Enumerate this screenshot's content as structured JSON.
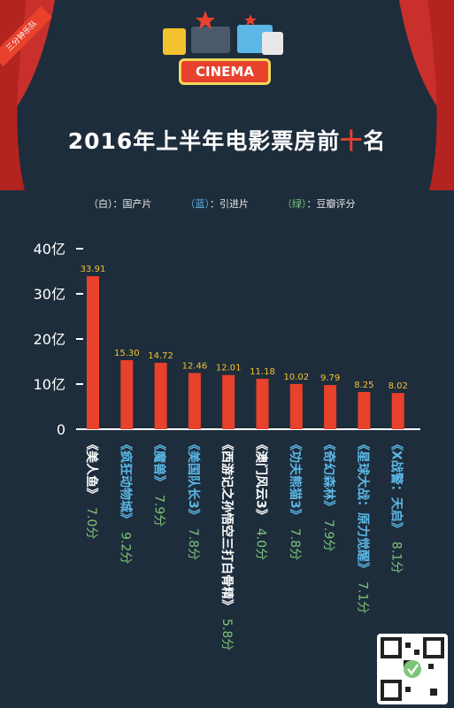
{
  "header": {
    "corner_tag": "三分钟乐队",
    "cinema_sign": "CINEMA",
    "title_before": "2016年上半年电影票房前",
    "title_highlight": "十",
    "title_after": "名"
  },
  "legend": {
    "items": [
      {
        "open": "（白）",
        "label": "：国产片",
        "color": "#ffffff"
      },
      {
        "open": "（蓝）",
        "label": "：引进片",
        "color": "#5bb8e6"
      },
      {
        "open": "（绿）",
        "label": "：豆瓣评分",
        "color": "#7cc576"
      }
    ]
  },
  "colors": {
    "bar": "#e8412c",
    "value_label": "#f3c22f",
    "domestic": "#ffffff",
    "imported": "#5bb8e6",
    "rating": "#7cc576",
    "axis": "#ffffff",
    "background": "#1e2d3c"
  },
  "chart_data": {
    "type": "bar",
    "title": "2016年上半年电影票房前十名",
    "ylim": [
      0,
      40
    ],
    "yticks": [
      {
        "value": 0,
        "label": "0"
      },
      {
        "value": 10,
        "label": "10亿"
      },
      {
        "value": 20,
        "label": "20亿"
      },
      {
        "value": 30,
        "label": "30亿"
      },
      {
        "value": 40,
        "label": "40亿"
      }
    ],
    "categories": [
      "《美人鱼》",
      "《疯狂动物城》",
      "《魔兽》",
      "《美国队长3》",
      "《西游记之孙悟空三打白骨精》",
      "《澳门风云3》",
      "《功夫熊猫3》",
      "《奇幻森林》",
      "《星球大战：原力觉醒》",
      "《X战警：天启》"
    ],
    "values": [
      33.91,
      15.3,
      14.72,
      12.46,
      12.01,
      11.18,
      10.02,
      9.79,
      8.25,
      8.02
    ],
    "value_labels": [
      "33.91",
      "15.30",
      "14.72",
      "12.46",
      "12.01",
      "11.18",
      "10.02",
      "9.79",
      "8.25",
      "8.02"
    ],
    "origin": [
      "domestic",
      "imported",
      "imported",
      "imported",
      "domestic",
      "domestic",
      "imported",
      "imported",
      "imported",
      "imported"
    ],
    "ratings": [
      "7.0分",
      "9.2分",
      "7.9分",
      "7.8分",
      "5.8分",
      "4.0分",
      "7.8分",
      "7.9分",
      "7.1分",
      "8.1分"
    ]
  }
}
